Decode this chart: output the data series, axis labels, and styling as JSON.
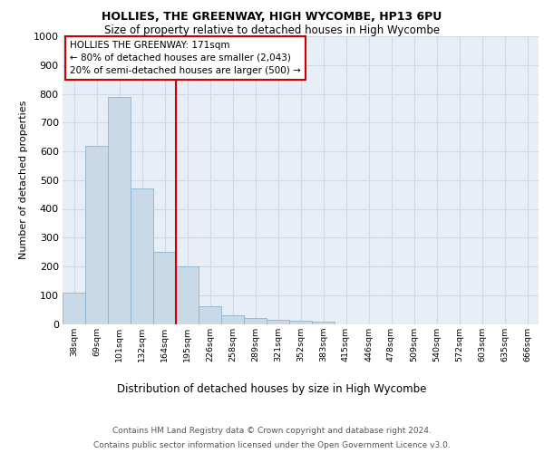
{
  "title1": "HOLLIES, THE GREENWAY, HIGH WYCOMBE, HP13 6PU",
  "title2": "Size of property relative to detached houses in High Wycombe",
  "xlabel": "Distribution of detached houses by size in High Wycombe",
  "ylabel": "Number of detached properties",
  "footer1": "Contains HM Land Registry data © Crown copyright and database right 2024.",
  "footer2": "Contains public sector information licensed under the Open Government Licence v3.0.",
  "bin_labels": [
    "38sqm",
    "69sqm",
    "101sqm",
    "132sqm",
    "164sqm",
    "195sqm",
    "226sqm",
    "258sqm",
    "289sqm",
    "321sqm",
    "352sqm",
    "383sqm",
    "415sqm",
    "446sqm",
    "478sqm",
    "509sqm",
    "540sqm",
    "572sqm",
    "603sqm",
    "635sqm",
    "666sqm"
  ],
  "bar_values": [
    110,
    620,
    790,
    470,
    250,
    200,
    60,
    30,
    20,
    15,
    10,
    8,
    0,
    0,
    0,
    0,
    0,
    0,
    0,
    0,
    0
  ],
  "bar_color": "#c9d9e8",
  "bar_edge_color": "#8ab4d0",
  "grid_color": "#d0d8e4",
  "background_color": "#e8eef6",
  "property_label": "HOLLIES THE GREENWAY: 171sqm",
  "annotation_line1": "← 80% of detached houses are smaller (2,043)",
  "annotation_line2": "20% of semi-detached houses are larger (500) →",
  "red_line_color": "#cc0000",
  "annotation_box_color": "#ffffff",
  "annotation_box_edge": "#cc0000",
  "red_line_x": 4.5,
  "ylim": [
    0,
    1000
  ],
  "yticks": [
    0,
    100,
    200,
    300,
    400,
    500,
    600,
    700,
    800,
    900,
    1000
  ]
}
